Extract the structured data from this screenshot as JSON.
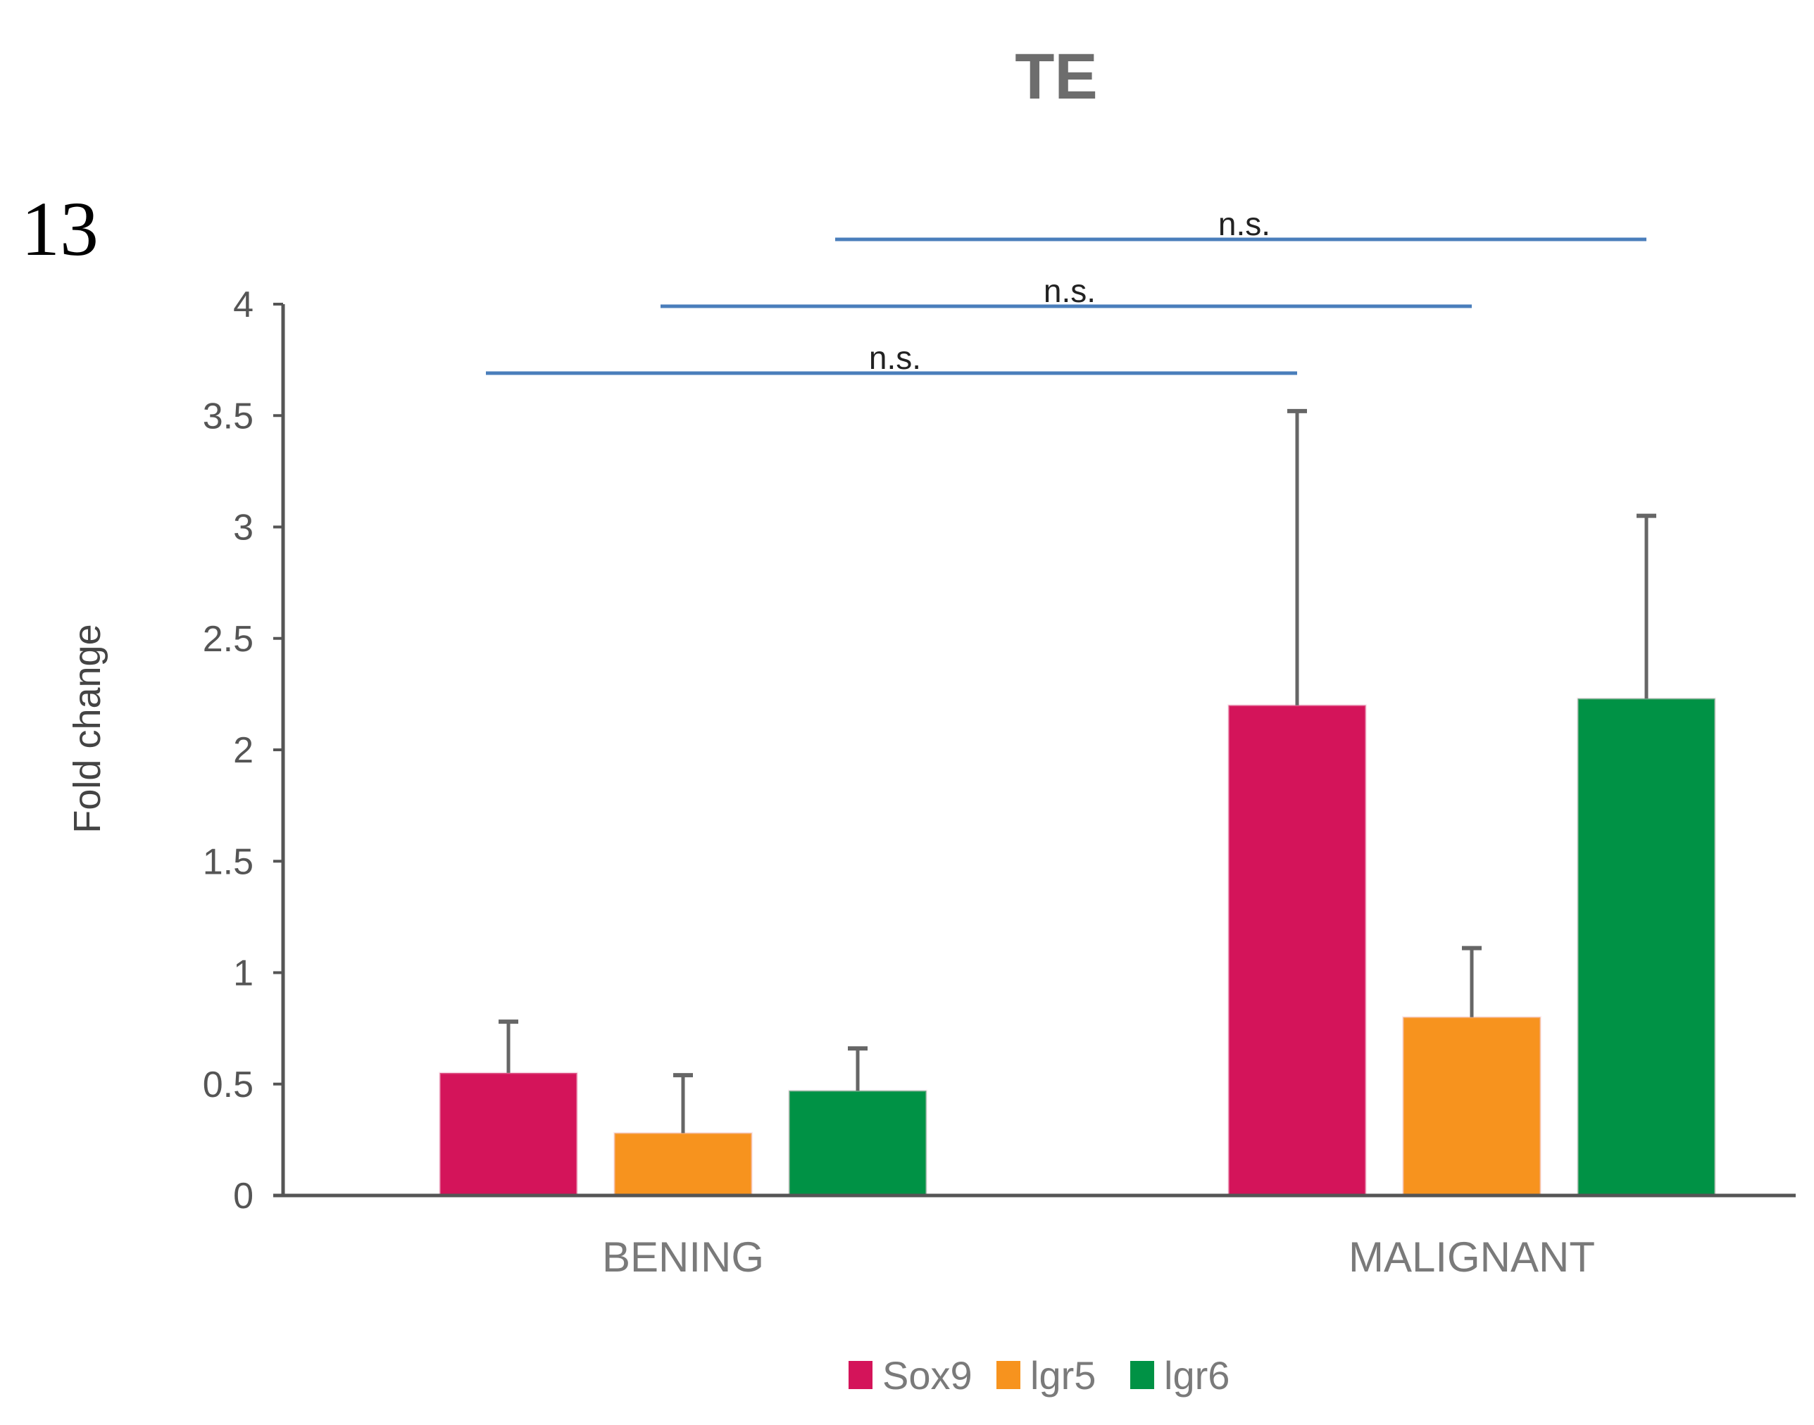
{
  "chart_data": {
    "type": "bar",
    "panel_label": "13",
    "title": "TE",
    "xlabel": "",
    "ylabel": "Fold change",
    "ylim": [
      0,
      4
    ],
    "yticks": [
      0,
      0.5,
      1,
      1.5,
      2,
      2.5,
      3,
      3.5,
      4
    ],
    "ytick_labels": [
      "0",
      "0.5",
      "1",
      "1.5",
      "2",
      "2.5",
      "3",
      "3.5",
      "4"
    ],
    "categories": [
      "BENING",
      "MALIGNANT"
    ],
    "series": [
      {
        "name": "Sox9",
        "color": "#d4145a",
        "values": [
          0.55,
          2.2
        ],
        "errors": [
          0.23,
          1.32
        ]
      },
      {
        "name": "lgr5",
        "color": "#f7931e",
        "values": [
          0.28,
          0.8
        ],
        "errors": [
          0.26,
          0.31
        ]
      },
      {
        "name": "lgr6",
        "color": "#009245",
        "values": [
          0.47,
          2.23
        ],
        "errors": [
          0.19,
          0.82
        ]
      }
    ],
    "significance": [
      {
        "label": "n.s.",
        "from": {
          "category": 0,
          "series": 0
        },
        "to": {
          "category": 1,
          "series": 0
        },
        "level": 0
      },
      {
        "label": "n.s.",
        "from": {
          "category": 0,
          "series": 1
        },
        "to": {
          "category": 1,
          "series": 1
        },
        "level": 1
      },
      {
        "label": "n.s.",
        "from": {
          "category": 0,
          "series": 2
        },
        "to": {
          "category": 1,
          "series": 2
        },
        "level": 2
      }
    ],
    "significance_color": "#4a7ebb",
    "axis_color": "#555555",
    "error_color": "#666666",
    "legend_position": "bottom-center"
  }
}
